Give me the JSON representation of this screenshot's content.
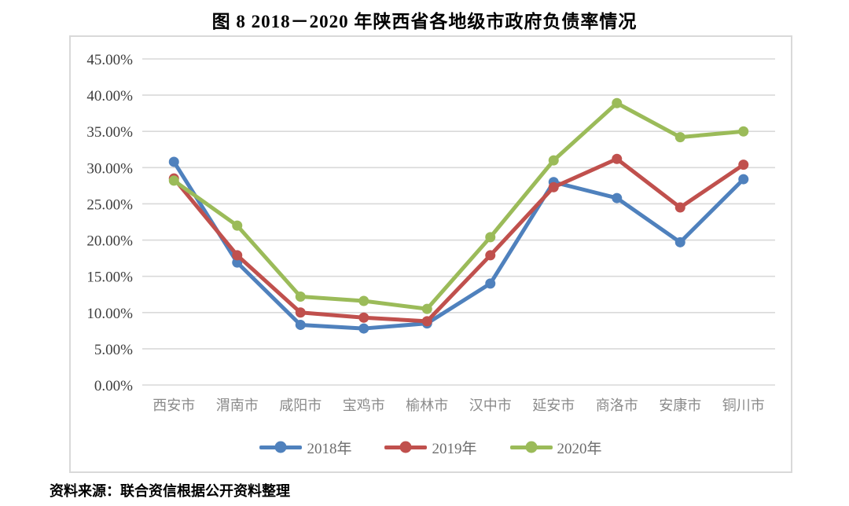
{
  "page": {
    "title": "图 8  2018－2020 年陕西省各地级市政府负债率情况",
    "source": "资料来源：联合资信根据公开资料整理"
  },
  "colors": {
    "series_2018": "#4F81BD",
    "series_2019": "#C0504D",
    "series_2020": "#9BBB59",
    "gridline": "#D9D9D9",
    "chart_border": "#D9D9D9",
    "y_axis_label": "#3D3D3D",
    "x_axis_label": "#8A8A8A",
    "legend_label": "#6E6E6E"
  },
  "chart_data": {
    "type": "line",
    "title": "图 8  2018－2020 年陕西省各地级市政府负债率情况",
    "categories": [
      "西安市",
      "渭南市",
      "咸阳市",
      "宝鸡市",
      "榆林市",
      "汉中市",
      "延安市",
      "商洛市",
      "安康市",
      "铜川市"
    ],
    "series": [
      {
        "name": "2018年",
        "color": "#4F81BD",
        "values": [
          30.8,
          16.9,
          8.3,
          7.8,
          8.5,
          14.0,
          28.0,
          25.8,
          19.7,
          28.4
        ]
      },
      {
        "name": "2019年",
        "color": "#C0504D",
        "values": [
          28.5,
          17.9,
          10.0,
          9.3,
          8.8,
          17.9,
          27.3,
          31.2,
          24.5,
          30.4
        ]
      },
      {
        "name": "2020年",
        "color": "#9BBB59",
        "values": [
          28.2,
          22.0,
          12.2,
          11.6,
          10.5,
          20.4,
          31.0,
          38.9,
          34.2,
          35.0
        ]
      }
    ],
    "xlabel": "",
    "ylabel": "",
    "ylim": [
      0,
      45
    ],
    "y_tick_step": 5,
    "y_tick_labels": [
      "0.00%",
      "5.00%",
      "10.00%",
      "15.00%",
      "20.00%",
      "25.00%",
      "30.00%",
      "35.00%",
      "40.00%",
      "45.00%"
    ],
    "grid": true,
    "legend_position": "bottom",
    "marker": "circle"
  }
}
